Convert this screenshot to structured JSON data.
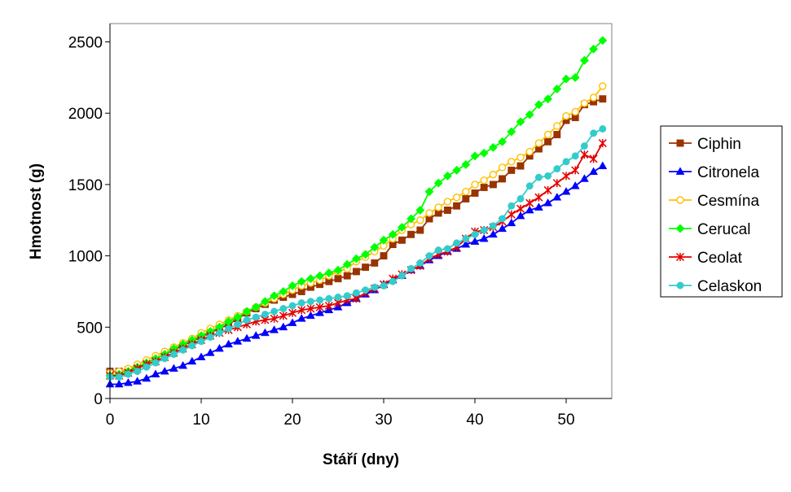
{
  "chart_data": {
    "type": "line",
    "title": "",
    "xlabel": "Stáří (dny)",
    "ylabel": "Hmotnost (g)",
    "xlim": [
      0,
      55
    ],
    "ylim": [
      0,
      2600
    ],
    "xticks": [
      0,
      10,
      20,
      30,
      40,
      50
    ],
    "yticks": [
      0,
      500,
      1000,
      1500,
      2000,
      2500
    ],
    "grid": false,
    "legend_position": "right",
    "series": [
      {
        "name": "Ciphin",
        "color": "#993300",
        "marker": "square",
        "x": [
          0,
          1,
          2,
          3,
          4,
          5,
          6,
          7,
          8,
          9,
          10,
          11,
          12,
          13,
          14,
          15,
          16,
          17,
          18,
          19,
          20,
          21,
          22,
          23,
          24,
          25,
          26,
          27,
          28,
          29,
          30,
          31,
          32,
          33,
          34,
          35,
          36,
          37,
          38,
          39,
          40,
          41,
          42,
          43,
          44,
          45,
          46,
          47,
          48,
          49,
          50,
          51,
          52,
          53,
          54
        ],
        "values": [
          190,
          190,
          200,
          220,
          250,
          280,
          310,
          340,
          370,
          400,
          430,
          460,
          490,
          520,
          560,
          600,
          630,
          660,
          690,
          710,
          730,
          750,
          780,
          800,
          820,
          840,
          860,
          890,
          920,
          950,
          1000,
          1080,
          1110,
          1150,
          1180,
          1260,
          1300,
          1320,
          1350,
          1400,
          1440,
          1480,
          1500,
          1540,
          1600,
          1630,
          1700,
          1750,
          1800,
          1850,
          1950,
          1970,
          2060,
          2080,
          2100
        ]
      },
      {
        "name": "Citronela",
        "color": "#0000ff",
        "marker": "triangle",
        "x": [
          0,
          1,
          2,
          3,
          4,
          5,
          6,
          7,
          8,
          9,
          10,
          11,
          12,
          13,
          14,
          15,
          16,
          17,
          18,
          19,
          20,
          21,
          22,
          23,
          24,
          25,
          26,
          27,
          28,
          29,
          30,
          31,
          32,
          33,
          34,
          35,
          36,
          37,
          38,
          39,
          40,
          41,
          42,
          43,
          44,
          45,
          46,
          47,
          48,
          49,
          50,
          51,
          52,
          53,
          54
        ],
        "values": [
          100,
          100,
          110,
          120,
          140,
          170,
          190,
          210,
          230,
          260,
          290,
          320,
          350,
          380,
          400,
          420,
          440,
          460,
          480,
          500,
          530,
          560,
          580,
          600,
          620,
          640,
          670,
          700,
          730,
          760,
          800,
          830,
          860,
          900,
          930,
          970,
          1000,
          1030,
          1050,
          1080,
          1100,
          1120,
          1150,
          1190,
          1230,
          1280,
          1320,
          1340,
          1370,
          1410,
          1450,
          1490,
          1540,
          1590,
          1630
        ]
      },
      {
        "name": "Cesmína",
        "color": "#ffc000",
        "marker": "circle-open",
        "x": [
          0,
          1,
          2,
          3,
          4,
          5,
          6,
          7,
          8,
          9,
          10,
          11,
          12,
          13,
          14,
          15,
          16,
          17,
          18,
          19,
          20,
          21,
          22,
          23,
          24,
          25,
          26,
          27,
          28,
          29,
          30,
          31,
          32,
          33,
          34,
          35,
          36,
          37,
          38,
          39,
          40,
          41,
          42,
          43,
          44,
          45,
          46,
          47,
          48,
          49,
          50,
          51,
          52,
          53,
          54
        ],
        "values": [
          180,
          190,
          210,
          240,
          270,
          300,
          330,
          360,
          390,
          420,
          460,
          490,
          520,
          550,
          580,
          610,
          640,
          670,
          700,
          730,
          760,
          790,
          810,
          830,
          860,
          890,
          910,
          960,
          990,
          1030,
          1070,
          1120,
          1180,
          1220,
          1250,
          1300,
          1340,
          1380,
          1410,
          1450,
          1500,
          1530,
          1570,
          1620,
          1660,
          1690,
          1730,
          1790,
          1850,
          1910,
          1980,
          2010,
          2070,
          2110,
          2190
        ]
      },
      {
        "name": "Cerucal",
        "color": "#00ff00",
        "marker": "diamond",
        "x": [
          0,
          1,
          2,
          3,
          4,
          5,
          6,
          7,
          8,
          9,
          10,
          11,
          12,
          13,
          14,
          15,
          16,
          17,
          18,
          19,
          20,
          21,
          22,
          23,
          24,
          25,
          26,
          27,
          28,
          29,
          30,
          31,
          32,
          33,
          34,
          35,
          36,
          37,
          38,
          39,
          40,
          41,
          42,
          43,
          44,
          45,
          46,
          47,
          48,
          49,
          50,
          51,
          52,
          53,
          54
        ],
        "values": [
          160,
          170,
          190,
          220,
          250,
          280,
          310,
          350,
          380,
          410,
          440,
          470,
          500,
          540,
          570,
          610,
          640,
          680,
          720,
          750,
          790,
          820,
          840,
          860,
          880,
          900,
          940,
          980,
          1010,
          1060,
          1110,
          1150,
          1200,
          1260,
          1320,
          1450,
          1510,
          1560,
          1600,
          1640,
          1700,
          1720,
          1760,
          1800,
          1870,
          1940,
          1990,
          2060,
          2100,
          2170,
          2240,
          2250,
          2370,
          2450,
          2510
        ]
      },
      {
        "name": "Ceolat",
        "color": "#e40000",
        "marker": "star",
        "x": [
          0,
          1,
          2,
          3,
          4,
          5,
          6,
          7,
          8,
          9,
          10,
          11,
          12,
          13,
          14,
          15,
          16,
          17,
          18,
          19,
          20,
          21,
          22,
          23,
          24,
          25,
          26,
          27,
          28,
          29,
          30,
          31,
          32,
          33,
          34,
          35,
          36,
          37,
          38,
          39,
          40,
          41,
          42,
          43,
          44,
          45,
          46,
          47,
          48,
          49,
          50,
          51,
          52,
          53,
          54
        ],
        "values": [
          160,
          160,
          180,
          210,
          240,
          260,
          290,
          320,
          350,
          380,
          410,
          440,
          460,
          480,
          500,
          520,
          540,
          550,
          560,
          580,
          600,
          620,
          630,
          640,
          650,
          670,
          690,
          700,
          740,
          770,
          800,
          840,
          870,
          900,
          930,
          980,
          1010,
          1030,
          1060,
          1120,
          1170,
          1180,
          1200,
          1240,
          1290,
          1330,
          1370,
          1410,
          1460,
          1510,
          1560,
          1600,
          1710,
          1680,
          1790
        ]
      },
      {
        "name": "Celaskon",
        "color": "#33cccc",
        "marker": "circle-filled",
        "x": [
          0,
          1,
          2,
          3,
          4,
          5,
          6,
          7,
          8,
          9,
          10,
          11,
          12,
          13,
          14,
          15,
          16,
          17,
          18,
          19,
          20,
          21,
          22,
          23,
          24,
          25,
          26,
          27,
          28,
          29,
          30,
          31,
          32,
          33,
          34,
          35,
          36,
          37,
          38,
          39,
          40,
          41,
          42,
          43,
          44,
          45,
          46,
          47,
          48,
          49,
          50,
          51,
          52,
          53,
          54
        ],
        "values": [
          150,
          150,
          170,
          190,
          220,
          250,
          280,
          310,
          340,
          370,
          400,
          430,
          460,
          490,
          520,
          550,
          570,
          590,
          610,
          630,
          650,
          670,
          680,
          690,
          700,
          710,
          720,
          740,
          760,
          780,
          790,
          820,
          860,
          910,
          950,
          1000,
          1040,
          1050,
          1090,
          1120,
          1150,
          1180,
          1210,
          1260,
          1350,
          1400,
          1490,
          1550,
          1560,
          1610,
          1660,
          1700,
          1770,
          1860,
          1890
        ]
      }
    ]
  }
}
